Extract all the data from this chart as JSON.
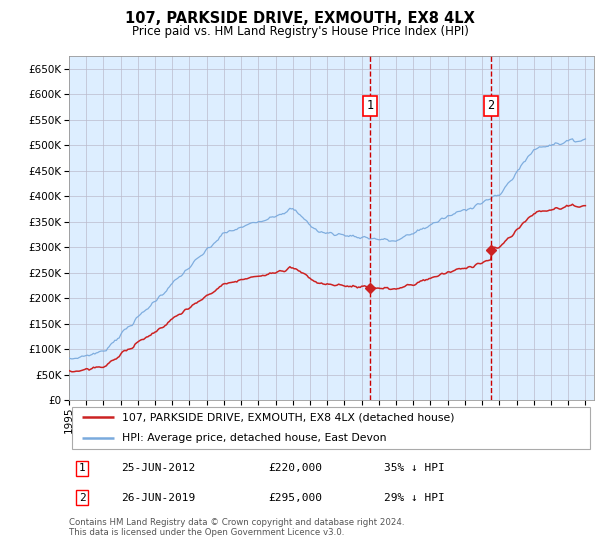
{
  "title": "107, PARKSIDE DRIVE, EXMOUTH, EX8 4LX",
  "subtitle": "Price paid vs. HM Land Registry's House Price Index (HPI)",
  "legend_line1": "107, PARKSIDE DRIVE, EXMOUTH, EX8 4LX (detached house)",
  "legend_line2": "HPI: Average price, detached house, East Devon",
  "sale1_date": "25-JUN-2012",
  "sale1_price": "£220,000",
  "sale1_hpi": "35% ↓ HPI",
  "sale1_year": 2012.5,
  "sale1_price_val": 220000,
  "sale2_date": "26-JUN-2019",
  "sale2_price": "£295,000",
  "sale2_hpi": "29% ↓ HPI",
  "sale2_year": 2019.5,
  "sale2_price_val": 295000,
  "footer": "Contains HM Land Registry data © Crown copyright and database right 2024.\nThis data is licensed under the Open Government Licence v3.0.",
  "hpi_color": "#7aaadd",
  "price_color": "#cc2222",
  "vline_color": "#cc0000",
  "background_color": "#ddeeff",
  "grid_color": "#bbbbcc",
  "ylim": [
    0,
    675000
  ],
  "xlim_start": 1995,
  "xlim_end": 2025.5,
  "yticks": [
    0,
    50000,
    100000,
    150000,
    200000,
    250000,
    300000,
    350000,
    400000,
    450000,
    500000,
    550000,
    600000,
    650000
  ]
}
